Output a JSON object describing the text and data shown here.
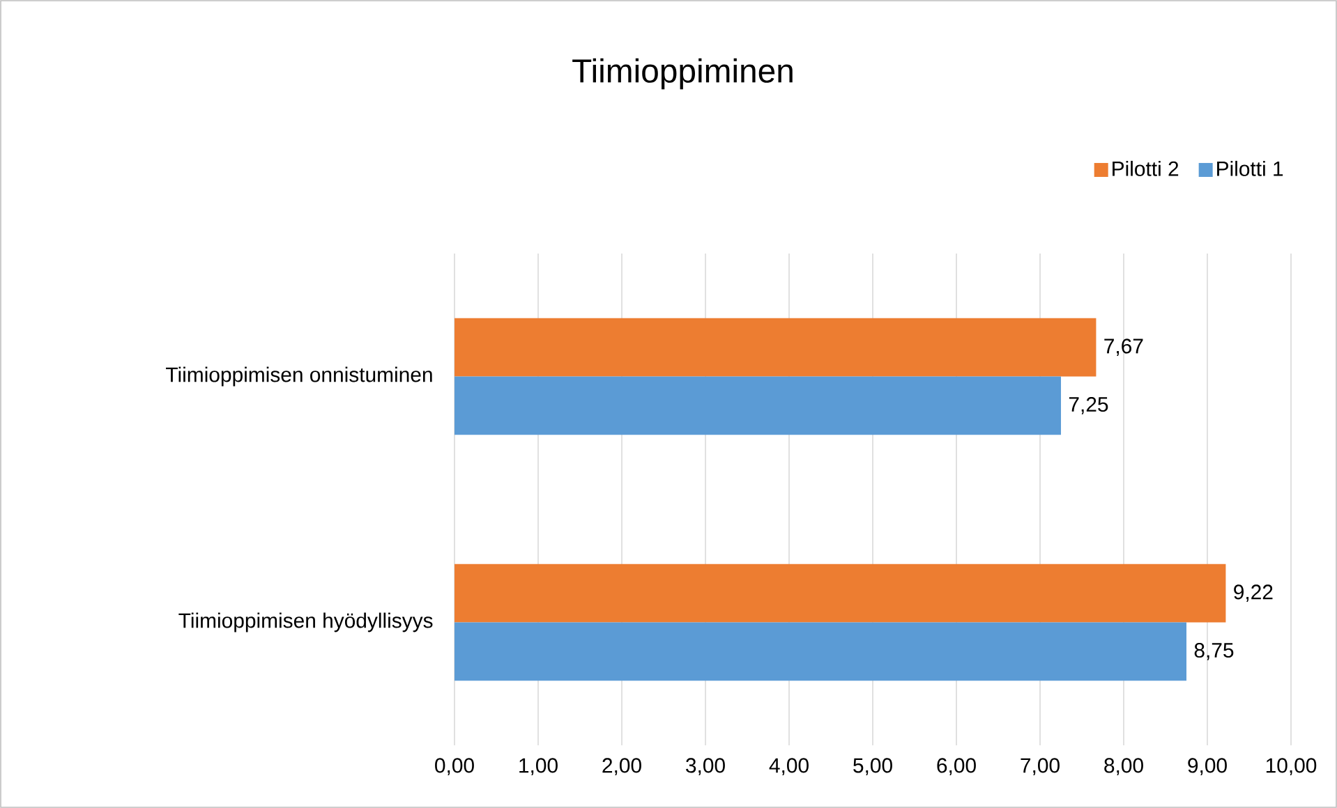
{
  "chart_data": {
    "type": "bar",
    "orientation": "horizontal",
    "title": "Tiimioppiminen",
    "categories": [
      "Tiimioppimisen onnistuminen",
      "Tiimioppimisen hyödyllisyys"
    ],
    "series": [
      {
        "name": "Pilotti 2",
        "color": "#ed7d31",
        "values": [
          7.67,
          9.22
        ],
        "value_labels": [
          "7,67",
          "9,22"
        ]
      },
      {
        "name": "Pilotti 1",
        "color": "#5b9bd5",
        "values": [
          7.25,
          8.75
        ],
        "value_labels": [
          "7,25",
          "8,75"
        ]
      }
    ],
    "xlim": [
      0,
      10
    ],
    "xticks": [
      {
        "value": 0,
        "label": "0,00"
      },
      {
        "value": 1,
        "label": "1,00"
      },
      {
        "value": 2,
        "label": "2,00"
      },
      {
        "value": 3,
        "label": "3,00"
      },
      {
        "value": 4,
        "label": "4,00"
      },
      {
        "value": 5,
        "label": "5,00"
      },
      {
        "value": 6,
        "label": "6,00"
      },
      {
        "value": 7,
        "label": "7,00"
      },
      {
        "value": 8,
        "label": "8,00"
      },
      {
        "value": 9,
        "label": "9,00"
      },
      {
        "value": 10,
        "label": "10,00"
      }
    ],
    "grid": "x",
    "legend": "top right"
  }
}
